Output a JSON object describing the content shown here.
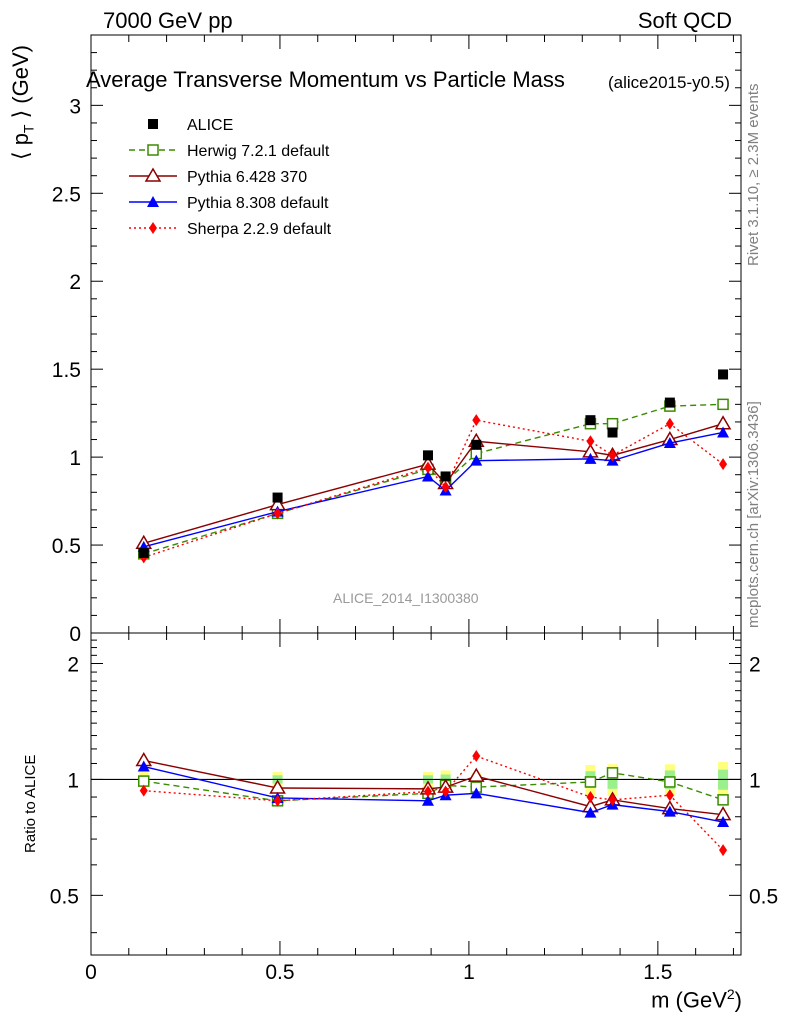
{
  "header": {
    "left": "7000 GeV pp",
    "right": "Soft QCD",
    "title": "Average Transverse Momentum vs Particle Mass",
    "subtitle": "(alice2015-y0.5)",
    "watermark": "ALICE_2014_I1300380",
    "side_top": "Rivet 3.1.10, ≥ 2.3M events",
    "side_bottom": "mcplots.cern.ch [arXiv:1306.3436]"
  },
  "chart_data": [
    {
      "type": "scatter",
      "name": "main",
      "xlabel": "m (GeV",
      "xlabel_sup": "2",
      "xlabel_close": ")",
      "ylabel": "⟨ p",
      "ylabel_sub": "T",
      "ylabel_rest": " ⟩ (GeV)",
      "xlim": [
        0,
        1.72
      ],
      "ylim": [
        0,
        3.4
      ],
      "x_ticks": [
        0,
        0.5,
        1,
        1.5
      ],
      "x_tick_labels": [
        "0",
        "0.5",
        "1",
        "1.5"
      ],
      "y_ticks": [
        0.5,
        1,
        1.5,
        2,
        2.5,
        3
      ],
      "y_tick_labels": [
        "0.5",
        "1",
        "1.5",
        "2",
        "2.5",
        "3"
      ],
      "y_zero_label": "0",
      "x": [
        0.1396,
        0.4937,
        0.8917,
        0.9383,
        1.0195,
        1.3216,
        1.38,
        1.5318,
        1.6725
      ],
      "series": [
        {
          "name": "ALICE",
          "label": "ALICE",
          "color": "#000000",
          "marker": "square-filled",
          "line": "none",
          "values": [
            0.455,
            0.77,
            1.01,
            0.89,
            1.07,
            1.21,
            1.14,
            1.31,
            1.47
          ]
        },
        {
          "name": "Herwig",
          "label": "Herwig 7.2.1 default",
          "color": "#3a8c00",
          "marker": "square-open",
          "line": "dashed",
          "values": [
            0.45,
            0.68,
            0.93,
            0.86,
            1.02,
            1.19,
            1.19,
            1.29,
            1.3
          ]
        },
        {
          "name": "Pythia6",
          "label": "Pythia 6.428 370",
          "color": "#8b0000",
          "marker": "triangle-open",
          "line": "solid",
          "values": [
            0.51,
            0.73,
            0.96,
            0.85,
            1.09,
            1.03,
            1.01,
            1.1,
            1.19
          ]
        },
        {
          "name": "Pythia8",
          "label": "Pythia 8.308 default",
          "color": "#0000ff",
          "marker": "triangle-filled",
          "line": "solid",
          "values": [
            0.49,
            0.69,
            0.89,
            0.81,
            0.98,
            0.99,
            0.98,
            1.08,
            1.14
          ]
        },
        {
          "name": "Sherpa",
          "label": "Sherpa 2.2.9 default",
          "color": "#ff0000",
          "marker": "diamond-filled",
          "line": "dotted",
          "values": [
            0.43,
            0.68,
            0.94,
            0.83,
            1.21,
            1.09,
            1.01,
            1.19,
            0.96
          ]
        }
      ],
      "legend_position": "top-left"
    },
    {
      "type": "scatter",
      "name": "ratio",
      "ylabel": "Ratio to ALICE",
      "ylim": [
        0.35,
        2.4
      ],
      "y_ticks": [
        0.5,
        1,
        2
      ],
      "y_tick_labels": [
        "0.5",
        "1",
        "2"
      ],
      "reference_line": 1,
      "band_low_yellow": [
        0.955,
        0.955,
        0.955,
        0.945,
        0.96,
        0.91,
        0.905,
        0.905,
        0.89
      ],
      "band_high_yellow": [
        1.045,
        1.045,
        1.045,
        1.055,
        1.04,
        1.09,
        1.095,
        1.095,
        1.11
      ],
      "band_low_green": [
        0.975,
        0.975,
        0.975,
        0.97,
        0.975,
        0.95,
        0.945,
        0.945,
        0.94
      ],
      "band_high_green": [
        1.025,
        1.025,
        1.025,
        1.03,
        1.025,
        1.05,
        1.055,
        1.055,
        1.06
      ],
      "series": [
        {
          "name": "Herwig",
          "color": "#3a8c00",
          "marker": "square-open",
          "line": "dashed",
          "values": [
            0.99,
            0.88,
            0.92,
            0.965,
            0.955,
            0.985,
            1.04,
            0.985,
            0.885
          ]
        },
        {
          "name": "Pythia6",
          "color": "#8b0000",
          "marker": "triangle-open",
          "line": "solid",
          "values": [
            1.12,
            0.95,
            0.945,
            0.955,
            1.02,
            0.85,
            0.885,
            0.84,
            0.81
          ]
        },
        {
          "name": "Pythia8",
          "color": "#0000ff",
          "marker": "triangle-filled",
          "line": "solid",
          "values": [
            1.08,
            0.895,
            0.88,
            0.91,
            0.92,
            0.82,
            0.86,
            0.825,
            0.775
          ]
        },
        {
          "name": "Sherpa",
          "color": "#ff0000",
          "marker": "diamond-filled",
          "line": "dotted",
          "values": [
            0.935,
            0.88,
            0.93,
            0.93,
            1.15,
            0.9,
            0.885,
            0.91,
            0.655
          ]
        }
      ]
    }
  ]
}
